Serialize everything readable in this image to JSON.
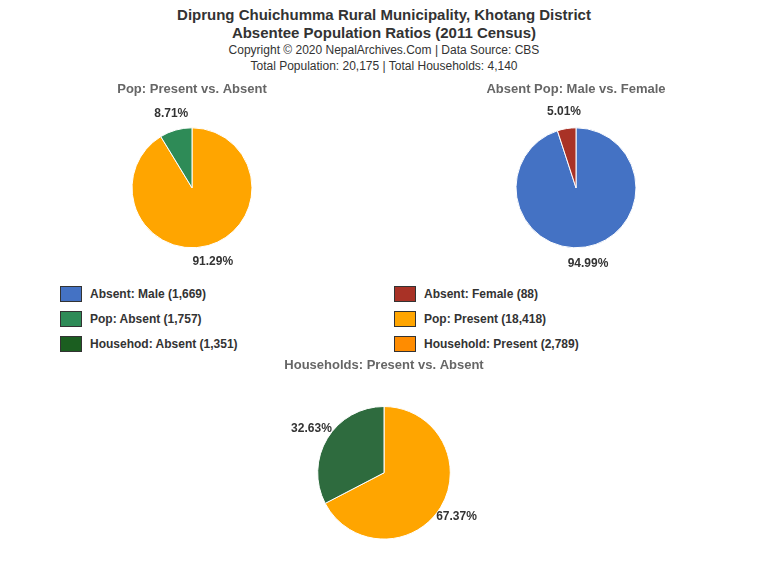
{
  "title": [
    "Diprung Chuichumma Rural Municipality, Khotang District",
    "Absentee Population Ratios (2011 Census)"
  ],
  "annotations": [
    "Copyright © 2020 NepalArchives.Com | Data Source: CBS",
    "Total Population: 20,175 | Total Households: 4,140"
  ],
  "legend_entries": [
    {
      "name": "Absent: Male (1,669)",
      "color": "#4472C4"
    },
    {
      "name": "Absent: Female (88)",
      "color": "#A93226"
    },
    {
      "name": "Pop: Absent (1,757)",
      "color": "#2E8B57"
    },
    {
      "name": "Pop: Present (18,418)",
      "color": "#FFA500"
    },
    {
      "name": "Househod: Absent (1,351)",
      "color": "#1B5E20"
    },
    {
      "name": "Household: Present (2,789)",
      "color": "#FF8C00"
    }
  ],
  "chart_data": [
    {
      "type": "pie",
      "title": "Pop: Present vs. Absent",
      "values": [
        91.29,
        8.71
      ],
      "value_labels": [
        "91.29%",
        "8.71%"
      ],
      "colors": [
        "#FFA500",
        "#2E8B57"
      ],
      "data_labels": true
    },
    {
      "type": "pie",
      "title": "Absent Pop: Male vs. Female",
      "values": [
        94.99,
        5.01
      ],
      "value_labels": [
        "94.99%",
        "5.01%"
      ],
      "colors": [
        "#4472C4",
        "#A93226"
      ],
      "data_labels": true
    },
    {
      "type": "pie",
      "title": "Households: Present vs. Absent",
      "values": [
        67.37,
        32.63
      ],
      "value_labels": [
        "67.37%",
        "32.63%"
      ],
      "colors": [
        "#FFA500",
        "#2E6B3E"
      ],
      "data_labels": true
    }
  ]
}
